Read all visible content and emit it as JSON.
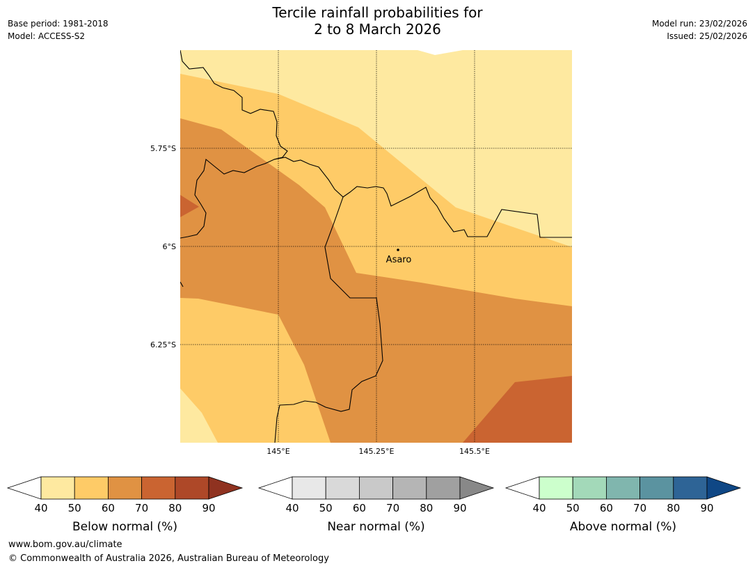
{
  "header": {
    "base_period": "Base period: 1981-2018",
    "model": "Model: ACCESS-S2",
    "title_line1": "Tercile rainfall probabilities for",
    "title_line2": "2 to 8 March 2026",
    "model_run": "Model run: 23/02/2026",
    "issued": "Issued: 25/02/2026"
  },
  "map": {
    "lat_labels": [
      "5.75°S",
      "6°S",
      "6.25°S"
    ],
    "lon_labels": [
      "145°E",
      "145.25°E",
      "145.5°E"
    ],
    "place": "Asaro",
    "colors": {
      "band_40_50": "#FEE9A0",
      "band_50_60": "#FECB67",
      "band_60_70": "#E09243",
      "band_70_80": "#CA6431"
    }
  },
  "colorbars": [
    {
      "label": "Below normal (%)",
      "ticks": [
        "40",
        "50",
        "60",
        "70",
        "80",
        "90"
      ],
      "colors": [
        "#FEE9A0",
        "#FECB67",
        "#E09243",
        "#CA6431",
        "#AE4828"
      ],
      "over_color": "#8F3220"
    },
    {
      "label": "Near normal (%)",
      "ticks": [
        "40",
        "50",
        "60",
        "70",
        "80",
        "90"
      ],
      "colors": [
        "#E8E8E8",
        "#D9D9D9",
        "#C9C9C9",
        "#B5B5B5",
        "#A0A0A0"
      ],
      "over_color": "#888888"
    },
    {
      "label": "Above normal (%)",
      "ticks": [
        "40",
        "50",
        "60",
        "70",
        "80",
        "90"
      ],
      "colors": [
        "#CCFFCC",
        "#A3D9B9",
        "#80B6AE",
        "#5B93A0",
        "#2E6496"
      ],
      "over_color": "#0F4785"
    }
  ],
  "footer": {
    "url": "www.bom.gov.au/climate",
    "copyright": "© Commonwealth of Australia 2026, Australian Bureau of Meteorology"
  }
}
